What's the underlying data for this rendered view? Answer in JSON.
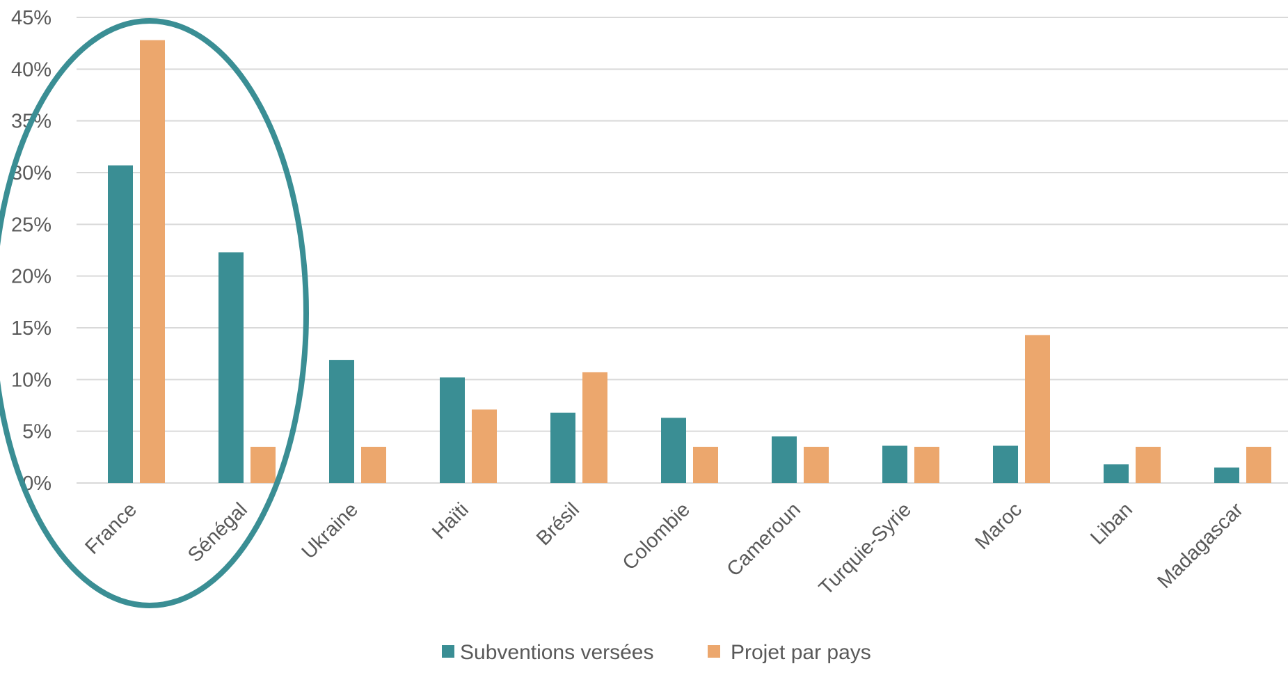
{
  "chart_data": {
    "type": "bar",
    "categories": [
      "France",
      "Sénégal",
      "Ukraine",
      "Haïti",
      "Brésil",
      "Colombie",
      "Cameroun",
      "Turquie-Syrie",
      "Maroc",
      "Liban",
      "Madagascar"
    ],
    "series": [
      {
        "name": "Subventions versées",
        "color": "#3a8e94",
        "values": [
          30.7,
          22.3,
          11.9,
          10.2,
          6.8,
          6.3,
          4.5,
          3.6,
          3.6,
          1.8,
          1.5
        ]
      },
      {
        "name": "Projet par pays",
        "color": "#eca76d",
        "values": [
          42.8,
          3.5,
          3.5,
          7.1,
          10.7,
          3.5,
          3.5,
          3.5,
          14.3,
          3.5,
          3.5
        ]
      }
    ],
    "ylim": [
      0,
      45
    ],
    "y_ticks": [
      "0%",
      "5%",
      "10%",
      "15%",
      "20%",
      "25%",
      "30%",
      "35%",
      "40%",
      "45%"
    ],
    "grid": true,
    "legend": "bottom-center",
    "annotation": {
      "shape": "ellipse",
      "encloses": [
        "France",
        "Sénégal"
      ],
      "color": "#3a8e94"
    },
    "title": "",
    "xlabel": "",
    "ylabel": ""
  }
}
